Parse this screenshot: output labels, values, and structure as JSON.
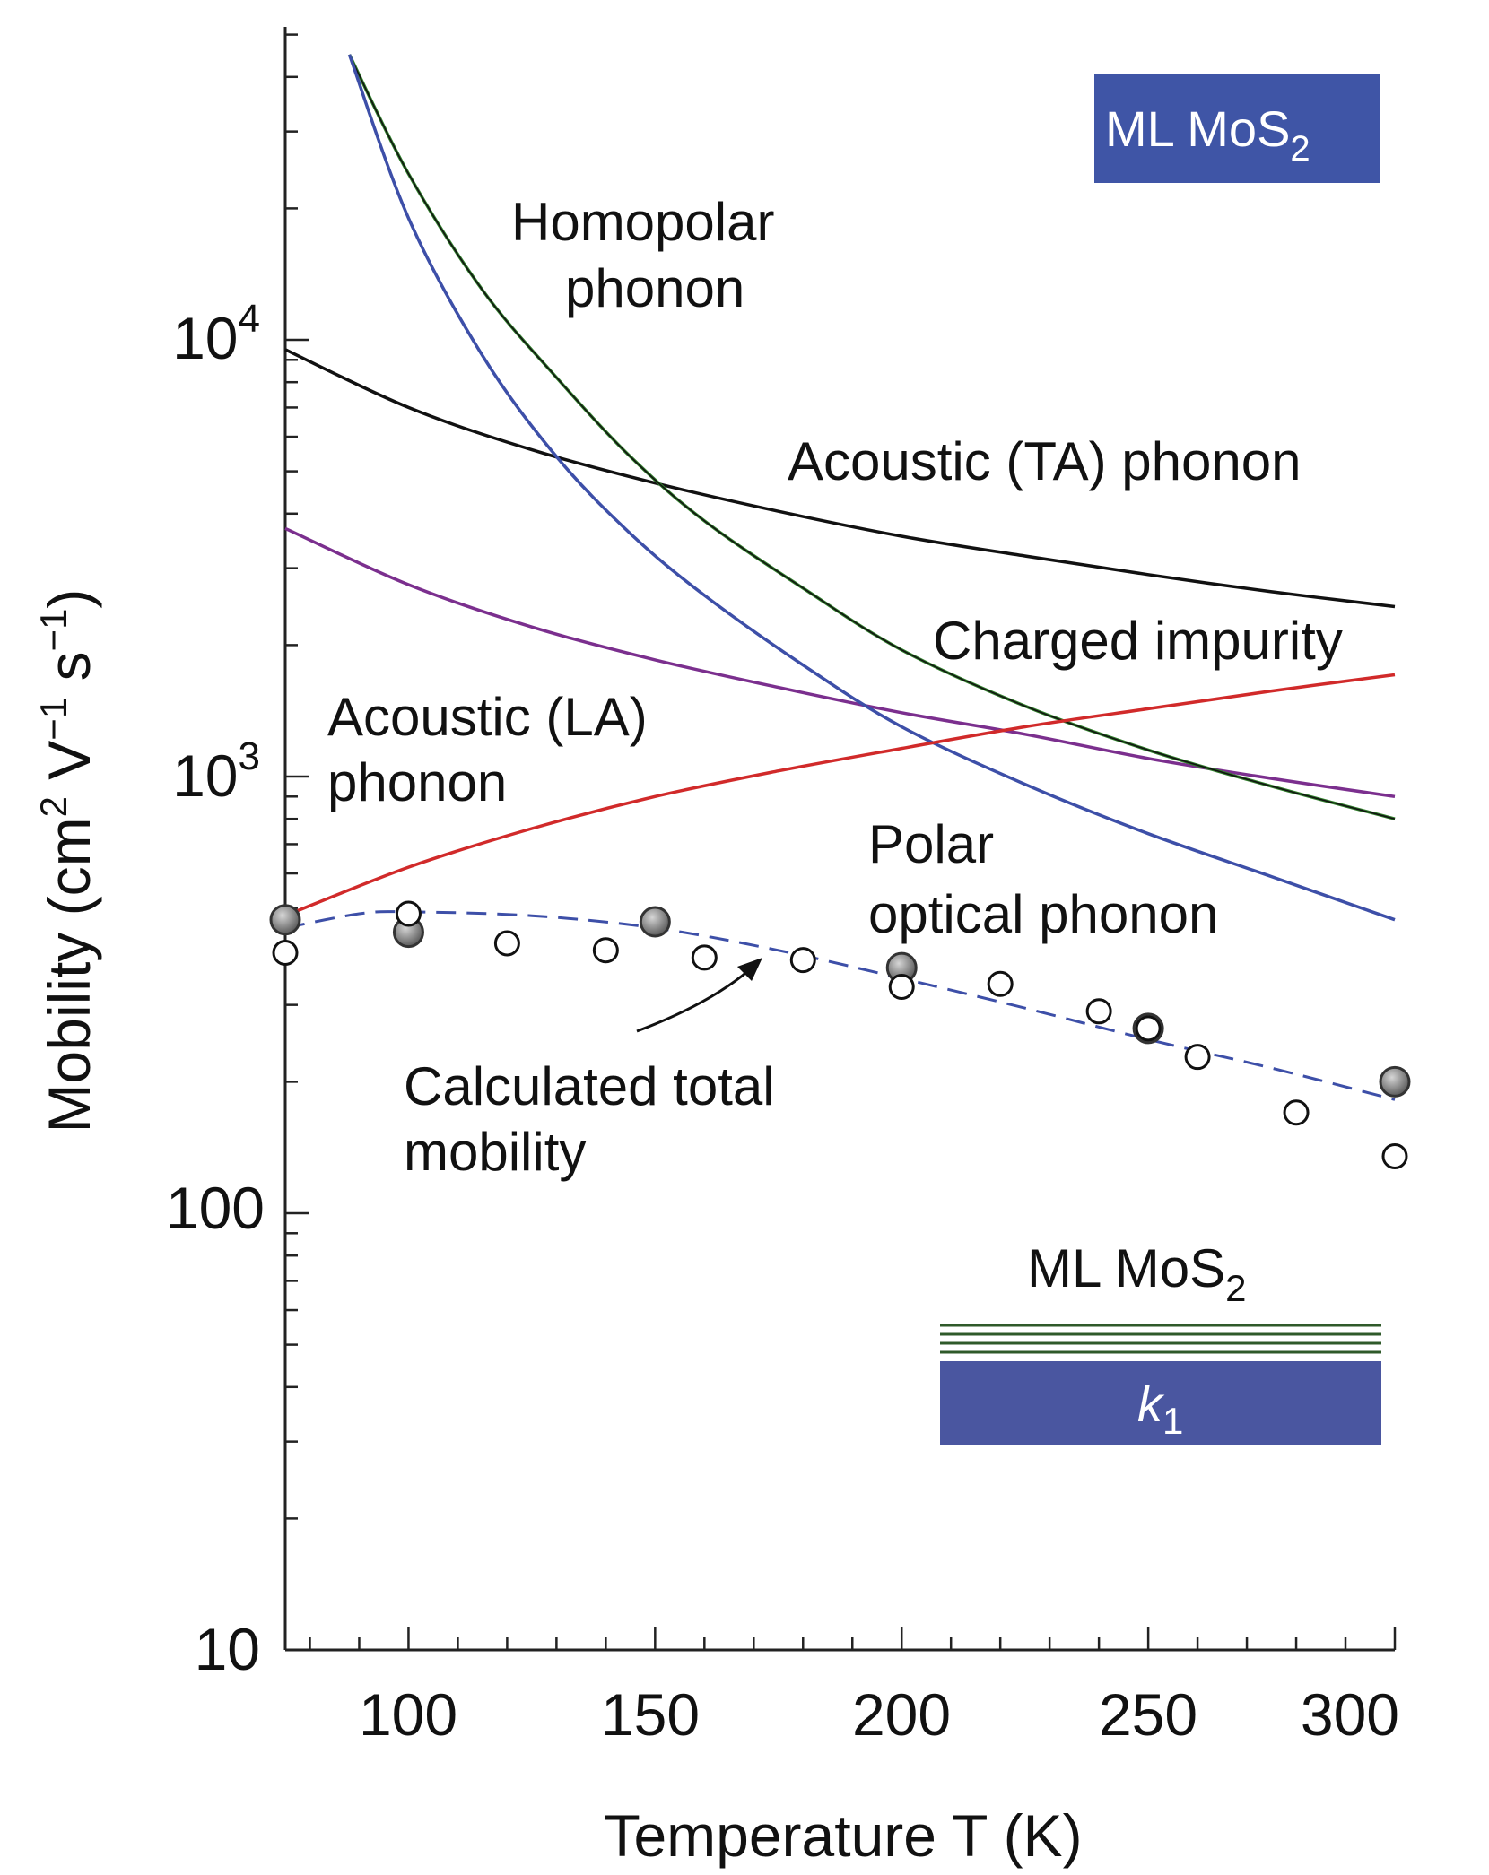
{
  "chart_data": {
    "type": "line",
    "title": "",
    "xlabel": "Temperature T (K)",
    "ylabel_main": "Mobility (cm",
    "ylabel_sup1": "2",
    "ylabel_mid": " V",
    "ylabel_sup2": "−1",
    "ylabel_mid2": " s",
    "ylabel_sup3": "−1",
    "ylabel_end": ")",
    "yscale": "log",
    "xlim": [
      75,
      300
    ],
    "ylim": [
      10,
      50000
    ],
    "x_ticks": [
      100,
      150,
      200,
      250,
      300
    ],
    "x_tick_labels": [
      "100",
      "150",
      "200",
      "250",
      "300"
    ],
    "y_tick_labels": {
      "y10": "10",
      "y100": "100",
      "y1000_base": "10",
      "y1000_exp": "3",
      "y10000_base": "10",
      "y10000_exp": "4"
    },
    "series": [
      {
        "name": "Acoustic (TA) phonon",
        "color": "#111111",
        "x": [
          75,
          100,
          125,
          150,
          175,
          200,
          225,
          250,
          275,
          300
        ],
        "y": [
          9500,
          7000,
          5600,
          4700,
          4050,
          3550,
          3200,
          2900,
          2650,
          2450
        ]
      },
      {
        "name": "Acoustic (LA) phonon",
        "color": "#7b2f8e",
        "x": [
          75,
          100,
          125,
          150,
          175,
          200,
          225,
          250,
          275,
          300
        ],
        "y": [
          3700,
          2750,
          2200,
          1850,
          1600,
          1400,
          1250,
          1100,
          990,
          900
        ]
      },
      {
        "name": "Homopolar phonon",
        "color": "#2f7d2a",
        "x": [
          88,
          100,
          115,
          130,
          145,
          160,
          180,
          200,
          225,
          250,
          275,
          300
        ],
        "y": [
          45000,
          24000,
          13000,
          8200,
          5400,
          3850,
          2700,
          1950,
          1450,
          1150,
          950,
          800
        ]
      },
      {
        "name": "Polar optical phonon",
        "color": "#3d4fa8",
        "x": [
          88,
          100,
          115,
          130,
          145,
          160,
          180,
          200,
          225,
          250,
          275,
          300
        ],
        "y": [
          45000,
          19000,
          9200,
          5400,
          3600,
          2600,
          1800,
          1300,
          960,
          740,
          590,
          470
        ]
      },
      {
        "name": "Charged impurity",
        "color": "#d12a2a",
        "x": [
          75,
          100,
          125,
          150,
          175,
          200,
          225,
          250,
          275,
          300
        ],
        "y": [
          480,
          620,
          760,
          900,
          1030,
          1160,
          1300,
          1430,
          1570,
          1710
        ]
      },
      {
        "name": "Calculated total mobility",
        "color": "#3d4fa8",
        "x": [
          75,
          90,
          100,
          125,
          150,
          175,
          200,
          225,
          250,
          275,
          300
        ],
        "y": [
          450,
          485,
          490,
          480,
          450,
          400,
          345,
          295,
          250,
          215,
          182
        ]
      }
    ],
    "points_filled": {
      "x": [
        75,
        100,
        150,
        200,
        250,
        300
      ],
      "y": [
        470,
        440,
        465,
        365,
        265,
        200
      ]
    },
    "points_open": {
      "x": [
        75,
        100,
        120,
        140,
        160,
        180,
        200,
        220,
        240,
        250,
        260,
        280,
        300
      ],
      "y": [
        395,
        485,
        415,
        400,
        385,
        380,
        330,
        335,
        290,
        265,
        228,
        170,
        135
      ]
    },
    "annotations": {
      "homopolar_1": "Homopolar",
      "homopolar_2": "phonon",
      "ta": "Acoustic (TA) phonon",
      "charged": "Charged impurity",
      "la_1": "Acoustic (LA)",
      "la_2": "phonon",
      "polar_1": "Polar",
      "polar_2": "optical phonon",
      "total_1": "Calculated total",
      "total_2": "mobility"
    },
    "legend_box": {
      "text": "ML MoS",
      "sub": "2",
      "color": "#3f55a6"
    },
    "inset": {
      "label": "ML MoS",
      "label_sub": "2",
      "substrate": "k",
      "substrate_sub": "1",
      "layer_color": "#2f5a2a",
      "substrate_color": "#4a56a0"
    }
  }
}
